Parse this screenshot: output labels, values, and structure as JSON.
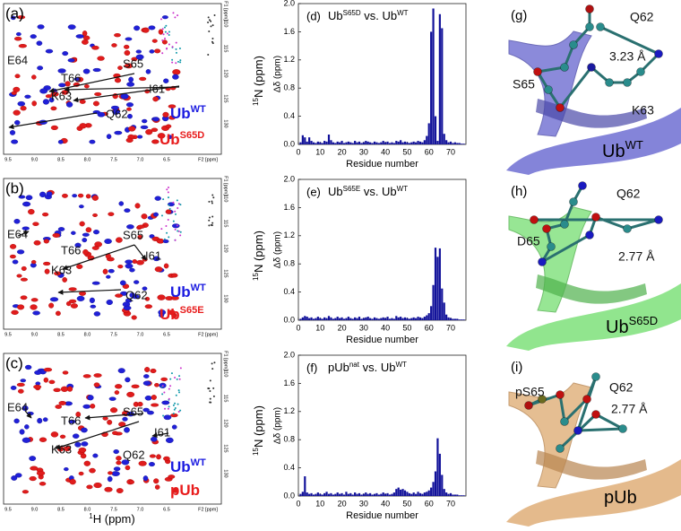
{
  "spectra": [
    {
      "label": "(a)",
      "peaks": [
        "E64",
        "T66",
        "S65",
        "K63",
        "I61",
        "Q62"
      ],
      "legend": [
        [
          {
            "text": "Ub"
          },
          {
            "text": "WT",
            "sup": true
          }
        ],
        [
          {
            "text": "Ub"
          },
          {
            "text": "S65D",
            "sup": true
          }
        ]
      ],
      "xticks": [
        "9.5",
        "9.0",
        "8.5",
        "8.0",
        "7.5",
        "7.0",
        "6.5",
        "F2 [ppm]"
      ],
      "yticks": [
        "F1 [ppm]",
        "110",
        "115",
        "120",
        "125",
        "130"
      ],
      "y_label": [
        {
          "text": "15",
          "sup": true
        },
        {
          "text": "N (ppm)"
        }
      ]
    },
    {
      "label": "(b)",
      "peaks": [
        "E64",
        "T66",
        "S65",
        "K63",
        "I61",
        "Q62"
      ],
      "legend": [
        [
          {
            "text": "Ub"
          },
          {
            "text": "WT",
            "sup": true
          }
        ],
        [
          {
            "text": "Ub"
          },
          {
            "text": "S65E",
            "sup": true
          }
        ]
      ],
      "xticks": [
        "9.5",
        "9.0",
        "8.5",
        "8.0",
        "7.5",
        "7.0",
        "6.5",
        "F2 [ppm]"
      ],
      "yticks": [
        "F1 [ppm]",
        "110",
        "115",
        "120",
        "125",
        "130"
      ],
      "y_label": [
        {
          "text": "15",
          "sup": true
        },
        {
          "text": "N (ppm)"
        }
      ]
    },
    {
      "label": "(c)",
      "peaks": [
        "E64",
        "T66",
        "S65",
        "K63",
        "I61",
        "Q62"
      ],
      "legend": [
        [
          {
            "text": "Ub"
          },
          {
            "text": "WT",
            "sup": true
          }
        ],
        [
          {
            "text": "pUb"
          }
        ]
      ],
      "xticks": [
        "9.5",
        "9.0",
        "8.5",
        "8.0",
        "7.5",
        "7.0",
        "6.5",
        "F2 [ppm]"
      ],
      "yticks": [
        "F1 [ppm]",
        "110",
        "115",
        "120",
        "125",
        "130"
      ],
      "y_label": [
        {
          "text": "15",
          "sup": true
        },
        {
          "text": "N (ppm)"
        }
      ],
      "x_label": [
        {
          "text": "1",
          "sup": true
        },
        {
          "text": "H (ppm)"
        }
      ]
    }
  ],
  "chart_data": [
    {
      "type": "bar",
      "label": "(d)",
      "title": [
        {
          "text": "Ub"
        },
        {
          "text": "S65D",
          "sup": true
        },
        {
          "text": " vs. Ub"
        },
        {
          "text": "WT",
          "sup": true
        }
      ],
      "x_label": "Residue number",
      "y_label": "Δδ (ppm)",
      "color": "#12129a",
      "xlim": [
        0,
        77
      ],
      "xticks": [
        0,
        10,
        20,
        30,
        40,
        50,
        60,
        70
      ],
      "ylim": [
        0,
        2
      ],
      "yticks": [
        {
          "value": 0,
          "label": "0.0"
        },
        0.4,
        0.8,
        1.2,
        1.6,
        {
          "value": 2,
          "label": "2.0"
        }
      ],
      "x": [
        1,
        2,
        3,
        4,
        5,
        6,
        7,
        8,
        9,
        10,
        11,
        12,
        13,
        14,
        15,
        16,
        17,
        18,
        19,
        20,
        21,
        22,
        23,
        24,
        25,
        26,
        27,
        28,
        29,
        30,
        31,
        32,
        33,
        34,
        35,
        36,
        37,
        38,
        39,
        40,
        41,
        42,
        43,
        44,
        45,
        46,
        47,
        48,
        49,
        50,
        51,
        52,
        53,
        54,
        55,
        56,
        57,
        58,
        59,
        60,
        61,
        62,
        63,
        64,
        65,
        66,
        67,
        68,
        69,
        70,
        71,
        72,
        73,
        74,
        75,
        76
      ],
      "values": [
        0.03,
        0.13,
        0.1,
        0.04,
        0.1,
        0.05,
        0.03,
        0.02,
        0.04,
        0.03,
        0.02,
        0.05,
        0.04,
        0.14,
        0.06,
        0.03,
        0.02,
        0.04,
        0.03,
        0.05,
        0.02,
        0.03,
        0.04,
        0.03,
        0.02,
        0.05,
        0.03,
        0.04,
        0.02,
        0.03,
        0.05,
        0.04,
        0.03,
        0.02,
        0.04,
        0.03,
        0.02,
        0.03,
        0.05,
        0.03,
        0.04,
        0.02,
        0.03,
        0.02,
        0.05,
        0.04,
        0.06,
        0.03,
        0.04,
        0.03,
        0.02,
        0.03,
        0.04,
        0.03,
        0.05,
        0.04,
        0.03,
        0.06,
        0.12,
        0.3,
        1.6,
        1.93,
        0.4,
        0.05,
        1.85,
        1.65,
        0.15,
        0.06,
        0.03,
        0.04,
        0.02,
        0.03,
        0.02,
        0.02,
        0.01,
        0.01
      ]
    },
    {
      "type": "bar",
      "label": "(e)",
      "title": [
        {
          "text": "Ub"
        },
        {
          "text": "S65E",
          "sup": true
        },
        {
          "text": " vs. Ub"
        },
        {
          "text": "WT",
          "sup": true
        }
      ],
      "x_label": "Residue number",
      "y_label": "Δδ (ppm)",
      "color": "#12129a",
      "xlim": [
        0,
        77
      ],
      "xticks": [
        0,
        10,
        20,
        30,
        40,
        50,
        60,
        70
      ],
      "ylim": [
        0,
        2
      ],
      "yticks": [
        {
          "value": 0,
          "label": "0.0"
        },
        0.4,
        0.8,
        1.2,
        1.6,
        {
          "value": 2,
          "label": "2.0"
        }
      ],
      "x": [
        1,
        2,
        3,
        4,
        5,
        6,
        7,
        8,
        9,
        10,
        11,
        12,
        13,
        14,
        15,
        16,
        17,
        18,
        19,
        20,
        21,
        22,
        23,
        24,
        25,
        26,
        27,
        28,
        29,
        30,
        31,
        32,
        33,
        34,
        35,
        36,
        37,
        38,
        39,
        40,
        41,
        42,
        43,
        44,
        45,
        46,
        47,
        48,
        49,
        50,
        51,
        52,
        53,
        54,
        55,
        56,
        57,
        58,
        59,
        60,
        61,
        62,
        63,
        64,
        65,
        66,
        67,
        68,
        69,
        70,
        71,
        72,
        73,
        74,
        75,
        76
      ],
      "values": [
        0.02,
        0.04,
        0.06,
        0.05,
        0.03,
        0.04,
        0.02,
        0.03,
        0.05,
        0.03,
        0.02,
        0.04,
        0.03,
        0.06,
        0.04,
        0.02,
        0.03,
        0.05,
        0.03,
        0.04,
        0.02,
        0.03,
        0.05,
        0.03,
        0.02,
        0.04,
        0.03,
        0.05,
        0.02,
        0.03,
        0.04,
        0.05,
        0.03,
        0.02,
        0.04,
        0.03,
        0.02,
        0.03,
        0.04,
        0.03,
        0.05,
        0.02,
        0.03,
        0.02,
        0.06,
        0.04,
        0.05,
        0.03,
        0.04,
        0.03,
        0.02,
        0.03,
        0.04,
        0.03,
        0.05,
        0.04,
        0.03,
        0.05,
        0.07,
        0.1,
        0.2,
        0.5,
        1.03,
        0.9,
        1.02,
        0.45,
        0.25,
        0.08,
        0.04,
        0.03,
        0.02,
        0.02,
        0.02,
        0.01,
        0.01,
        0.01
      ]
    },
    {
      "type": "bar",
      "label": "(f)",
      "title": [
        {
          "text": "pUb"
        },
        {
          "text": "nat",
          "sup": true
        },
        {
          "text": " vs. Ub"
        },
        {
          "text": "WT",
          "sup": true
        }
      ],
      "x_label": "Residue number",
      "y_label": "Δδ (ppm)",
      "color": "#12129a",
      "xlim": [
        0,
        77
      ],
      "xticks": [
        0,
        10,
        20,
        30,
        40,
        50,
        60,
        70
      ],
      "ylim": [
        0,
        2
      ],
      "yticks": [
        {
          "value": 0,
          "label": "0.0"
        },
        0.4,
        0.8,
        1.2,
        1.6,
        {
          "value": 2,
          "label": "2.0"
        }
      ],
      "x": [
        1,
        2,
        3,
        4,
        5,
        6,
        7,
        8,
        9,
        10,
        11,
        12,
        13,
        14,
        15,
        16,
        17,
        18,
        19,
        20,
        21,
        22,
        23,
        24,
        25,
        26,
        27,
        28,
        29,
        30,
        31,
        32,
        33,
        34,
        35,
        36,
        37,
        38,
        39,
        40,
        41,
        42,
        43,
        44,
        45,
        46,
        47,
        48,
        49,
        50,
        51,
        52,
        53,
        54,
        55,
        56,
        57,
        58,
        59,
        60,
        61,
        62,
        63,
        64,
        65,
        66,
        67,
        68,
        69,
        70,
        71,
        72,
        73,
        74,
        75,
        76
      ],
      "values": [
        0.03,
        0.06,
        0.28,
        0.05,
        0.03,
        0.04,
        0.02,
        0.03,
        0.05,
        0.03,
        0.02,
        0.04,
        0.06,
        0.03,
        0.04,
        0.02,
        0.03,
        0.05,
        0.03,
        0.04,
        0.02,
        0.06,
        0.03,
        0.04,
        0.02,
        0.05,
        0.03,
        0.04,
        0.02,
        0.03,
        0.05,
        0.03,
        0.04,
        0.02,
        0.03,
        0.04,
        0.02,
        0.03,
        0.05,
        0.03,
        0.04,
        0.02,
        0.03,
        0.05,
        0.1,
        0.12,
        0.09,
        0.1,
        0.08,
        0.06,
        0.04,
        0.03,
        0.05,
        0.03,
        0.06,
        0.04,
        0.03,
        0.05,
        0.06,
        0.08,
        0.12,
        0.2,
        0.35,
        0.82,
        0.6,
        0.3,
        0.1,
        0.05,
        0.03,
        0.04,
        0.02,
        0.02,
        0.02,
        0.01,
        0.01,
        0.01
      ]
    }
  ],
  "structures": [
    {
      "label": "(g)",
      "texts": [
        "Q62",
        "S65",
        "3.23 Å",
        "K63"
      ],
      "name": [
        {
          "text": "Ub"
        },
        {
          "text": "WT",
          "sup": true
        }
      ]
    },
    {
      "label": "(h)",
      "texts": [
        "Q62",
        "D65",
        "2.77 Å"
      ],
      "name": [
        {
          "text": "Ub"
        },
        {
          "text": "S65D",
          "sup": true
        }
      ]
    },
    {
      "label": "(i)",
      "texts": [
        "pS65",
        "Q62",
        "2.77 Å"
      ],
      "name": [
        {
          "text": "pUb"
        }
      ]
    }
  ]
}
